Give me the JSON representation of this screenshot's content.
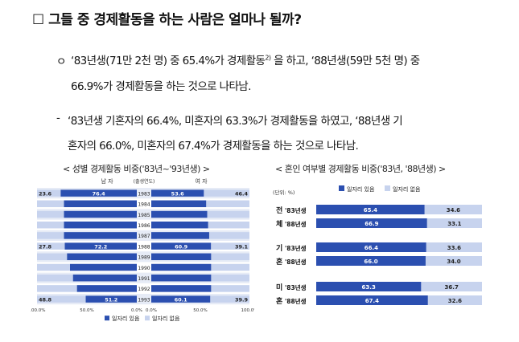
{
  "heading": "☐ 그들 중 경제활동을 하는 사람은 얼마나 될까?",
  "bullet1": {
    "marker": "ㅇ",
    "line1": "‘83년생(71만 2천 명) 중 65.4%가 경제활동",
    "sup": "2)",
    "line1b": "을 하고, ‘88년생(59만 5천 명) 중",
    "line2": "66.9%가 경제활동을 하는 것으로 나타남."
  },
  "bullet2": {
    "marker": "-",
    "line1": "‘83년생 기혼자의 66.4%, 미혼자의 63.3%가 경제활동을 하였고, ‘88년생 기",
    "line2": "혼자의 66.0%, 미혼자의 67.4%가 경제활동을 하는 것으로 나타남."
  },
  "colors": {
    "employed": "#2b4fb0",
    "unemployed": "#c7d3ee",
    "stripe": "#e6ebf6"
  },
  "chart_data": [
    {
      "type": "bar",
      "title": "< 성별 경제활동 비중('83년~'93년생) >",
      "header_male": "남 자",
      "header_female": "여 자",
      "header_year": "(출생연도)",
      "categories": [
        "1983",
        "1984",
        "1985",
        "1986",
        "1987",
        "1988",
        "1989",
        "1990",
        "1991",
        "1992",
        "1993"
      ],
      "series": [
        {
          "name": "일자리 있음",
          "male": [
            76.4,
            73,
            73,
            73,
            73,
            72.2,
            70,
            67,
            64,
            60,
            51.2
          ],
          "female": [
            53.6,
            56,
            57,
            58,
            59,
            60.9,
            61,
            61,
            61,
            61,
            60.1
          ]
        },
        {
          "name": "일자리 없음",
          "male": [
            23.6,
            27,
            27,
            27,
            27,
            27.8,
            30,
            33,
            36,
            40,
            48.8
          ],
          "female": [
            46.4,
            44,
            43,
            42,
            41,
            39.1,
            39,
            39,
            39,
            39,
            39.9
          ]
        }
      ],
      "labels": [
        {
          "row": 0,
          "male_employed": "76.4",
          "male_unemployed": "23.6",
          "female_employed": "53.6",
          "female_unemployed": "46.4"
        },
        {
          "row": 5,
          "male_employed": "72.2",
          "male_unemployed": "27.8",
          "female_employed": "60.9",
          "female_unemployed": "39.1"
        },
        {
          "row": 10,
          "male_employed": "51.2",
          "male_unemployed": "48.8",
          "female_employed": "60.1",
          "female_unemployed": "39.9"
        }
      ],
      "axis_ticks_left": [
        "100.0%",
        "50.0%",
        "0.0%"
      ],
      "axis_ticks_right": [
        "0.0%",
        "50.0%",
        "100.0%"
      ],
      "legend": [
        "일자리 있음",
        "일자리 없음"
      ],
      "legend_position": "bottom"
    },
    {
      "type": "bar",
      "title": "< 혼인 여부별 경제활동 비중('83년, '88년생) >",
      "unit": "(단위: %)",
      "groups": [
        {
          "label_top": "전",
          "label_bottom": "체",
          "rows": [
            {
              "name": "'83년생",
              "employed": 65.4,
              "unemployed": 34.6
            },
            {
              "name": "'88년생",
              "employed": 66.9,
              "unemployed": 33.1
            }
          ]
        },
        {
          "label_top": "기",
          "label_bottom": "혼",
          "rows": [
            {
              "name": "'83년생",
              "employed": 66.4,
              "unemployed": 33.6
            },
            {
              "name": "'88년생",
              "employed": 66.0,
              "unemployed": 34.0
            }
          ]
        },
        {
          "label_top": "미",
          "label_bottom": "혼",
          "rows": [
            {
              "name": "'83년생",
              "employed": 63.3,
              "unemployed": 36.7
            },
            {
              "name": "'88년생",
              "employed": 67.4,
              "unemployed": 32.6
            }
          ]
        }
      ],
      "legend": [
        "일자리 있음",
        "일자리 없음"
      ],
      "legend_position": "top"
    }
  ]
}
